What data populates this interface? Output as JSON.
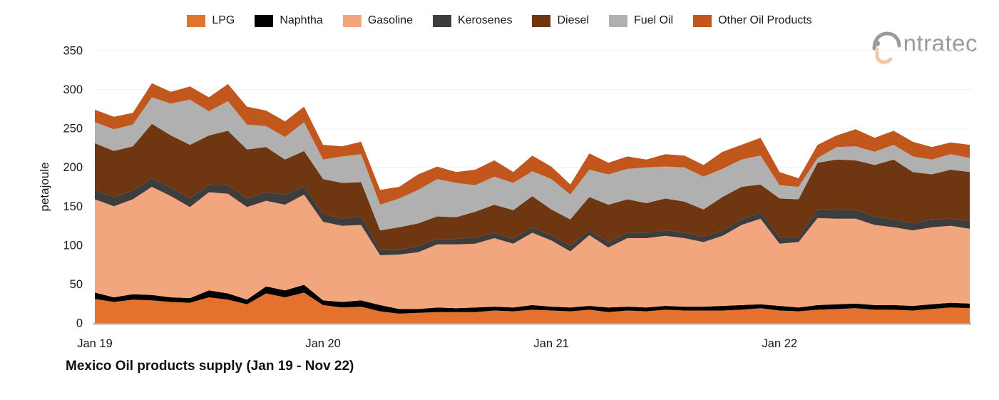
{
  "page": {
    "background": "#FFFFFF"
  },
  "logo": {
    "brand": "intratec",
    "text": "ntratec",
    "gray": "#9B9B9B",
    "peach": "#EFC6A2"
  },
  "chart_data": {
    "type": "area",
    "stacked": true,
    "title": "Mexico Oil products supply (Jan 19 - Nov 22)",
    "xlabel": "",
    "ylabel": "petajoule",
    "ylim": [
      0,
      350
    ],
    "yticks": [
      0,
      50,
      100,
      150,
      200,
      250,
      300,
      350
    ],
    "grid": "horizontal-faint",
    "legend_position": "top-center",
    "axis_color": "#A6A6A6",
    "grid_color": "#F2F2F2",
    "text_color": "#1A1A1A",
    "x_ticks": [
      {
        "index": 0,
        "label": "Jan 19"
      },
      {
        "index": 12,
        "label": "Jan 20"
      },
      {
        "index": 24,
        "label": "Jan 21"
      },
      {
        "index": 36,
        "label": "Jan 22"
      }
    ],
    "months": [
      "Jan 19",
      "Feb 19",
      "Mar 19",
      "Apr 19",
      "May 19",
      "Jun 19",
      "Jul 19",
      "Aug 19",
      "Sep 19",
      "Oct 19",
      "Nov 19",
      "Dec 19",
      "Jan 20",
      "Feb 20",
      "Mar 20",
      "Apr 20",
      "May 20",
      "Jun 20",
      "Jul 20",
      "Aug 20",
      "Sep 20",
      "Oct 20",
      "Nov 20",
      "Dec 20",
      "Jan 21",
      "Feb 21",
      "Mar 21",
      "Apr 21",
      "May 21",
      "Jun 21",
      "Jul 21",
      "Aug 21",
      "Sep 21",
      "Oct 21",
      "Nov 21",
      "Dec 21",
      "Jan 22",
      "Feb 22",
      "Mar 22",
      "Apr 22",
      "May 22",
      "Jun 22",
      "Jul 22",
      "Aug 22",
      "Sep 22",
      "Oct 22",
      "Nov 22"
    ],
    "series": [
      {
        "name": "LPG",
        "color": "#E4722E",
        "values": [
          31,
          27,
          30,
          29,
          27,
          26,
          33,
          30,
          24,
          38,
          33,
          39,
          23,
          20,
          21,
          15,
          12,
          13,
          14,
          14,
          14,
          16,
          15,
          17,
          16,
          15,
          17,
          14,
          16,
          15,
          17,
          16,
          16,
          16,
          17,
          19,
          16,
          15,
          17,
          18,
          19,
          17,
          17,
          16,
          18,
          20,
          19
        ]
      },
      {
        "name": "Naphtha",
        "color": "#000000",
        "values": [
          8,
          6,
          7,
          7,
          6,
          6,
          9,
          8,
          6,
          9,
          9,
          10,
          6,
          7,
          8,
          8,
          6,
          5,
          6,
          5,
          6,
          5,
          5,
          6,
          5,
          5,
          5,
          6,
          5,
          5,
          5,
          5,
          5,
          6,
          6,
          5,
          6,
          5,
          6,
          6,
          6,
          6,
          6,
          6,
          6,
          6,
          6
        ]
      },
      {
        "name": "Gasoline",
        "color": "#F2A67D",
        "values": [
          120,
          117,
          122,
          139,
          130,
          117,
          126,
          128,
          119,
          110,
          110,
          116,
          101,
          98,
          97,
          64,
          70,
          73,
          81,
          82,
          82,
          88,
          82,
          93,
          85,
          72,
          91,
          77,
          88,
          89,
          90,
          88,
          83,
          90,
          103,
          110,
          80,
          84,
          112,
          110,
          109,
          103,
          100,
          97,
          99,
          99,
          96
        ]
      },
      {
        "name": "Kerosenes",
        "color": "#3D3D3D",
        "values": [
          11,
          12,
          11,
          11,
          11,
          11,
          10,
          11,
          11,
          11,
          13,
          10,
          10,
          9,
          11,
          7,
          6,
          8,
          7,
          7,
          8,
          7,
          6,
          7,
          7,
          7,
          6,
          7,
          7,
          7,
          7,
          7,
          7,
          7,
          7,
          8,
          8,
          6,
          11,
          11,
          11,
          11,
          10,
          9,
          10,
          9,
          10
        ]
      },
      {
        "name": "Diesel",
        "color": "#6E3711",
        "values": [
          61,
          59,
          57,
          70,
          67,
          69,
          63,
          70,
          63,
          58,
          45,
          46,
          45,
          46,
          44,
          25,
          29,
          29,
          29,
          28,
          33,
          36,
          37,
          40,
          33,
          34,
          43,
          48,
          43,
          38,
          41,
          40,
          35,
          43,
          42,
          36,
          50,
          49,
          60,
          65,
          64,
          66,
          77,
          66,
          58,
          63,
          63
        ]
      },
      {
        "name": "Fuel Oil",
        "color": "#B0B0B0",
        "values": [
          27,
          28,
          28,
          34,
          41,
          58,
          31,
          38,
          32,
          27,
          29,
          37,
          25,
          34,
          36,
          33,
          37,
          43,
          48,
          44,
          34,
          36,
          35,
          32,
          39,
          32,
          35,
          39,
          39,
          46,
          41,
          44,
          42,
          36,
          35,
          37,
          17,
          16,
          6,
          16,
          18,
          17,
          19,
          20,
          19,
          20,
          18
        ]
      },
      {
        "name": "Other Oil Products",
        "color": "#C2571D",
        "values": [
          16,
          16,
          15,
          18,
          15,
          17,
          18,
          22,
          23,
          20,
          20,
          20,
          19,
          13,
          16,
          19,
          15,
          20,
          16,
          14,
          20,
          21,
          14,
          20,
          16,
          13,
          21,
          15,
          16,
          10,
          16,
          15,
          15,
          22,
          19,
          23,
          17,
          11,
          17,
          15,
          22,
          18,
          18,
          19,
          16,
          15,
          17
        ]
      }
    ]
  }
}
